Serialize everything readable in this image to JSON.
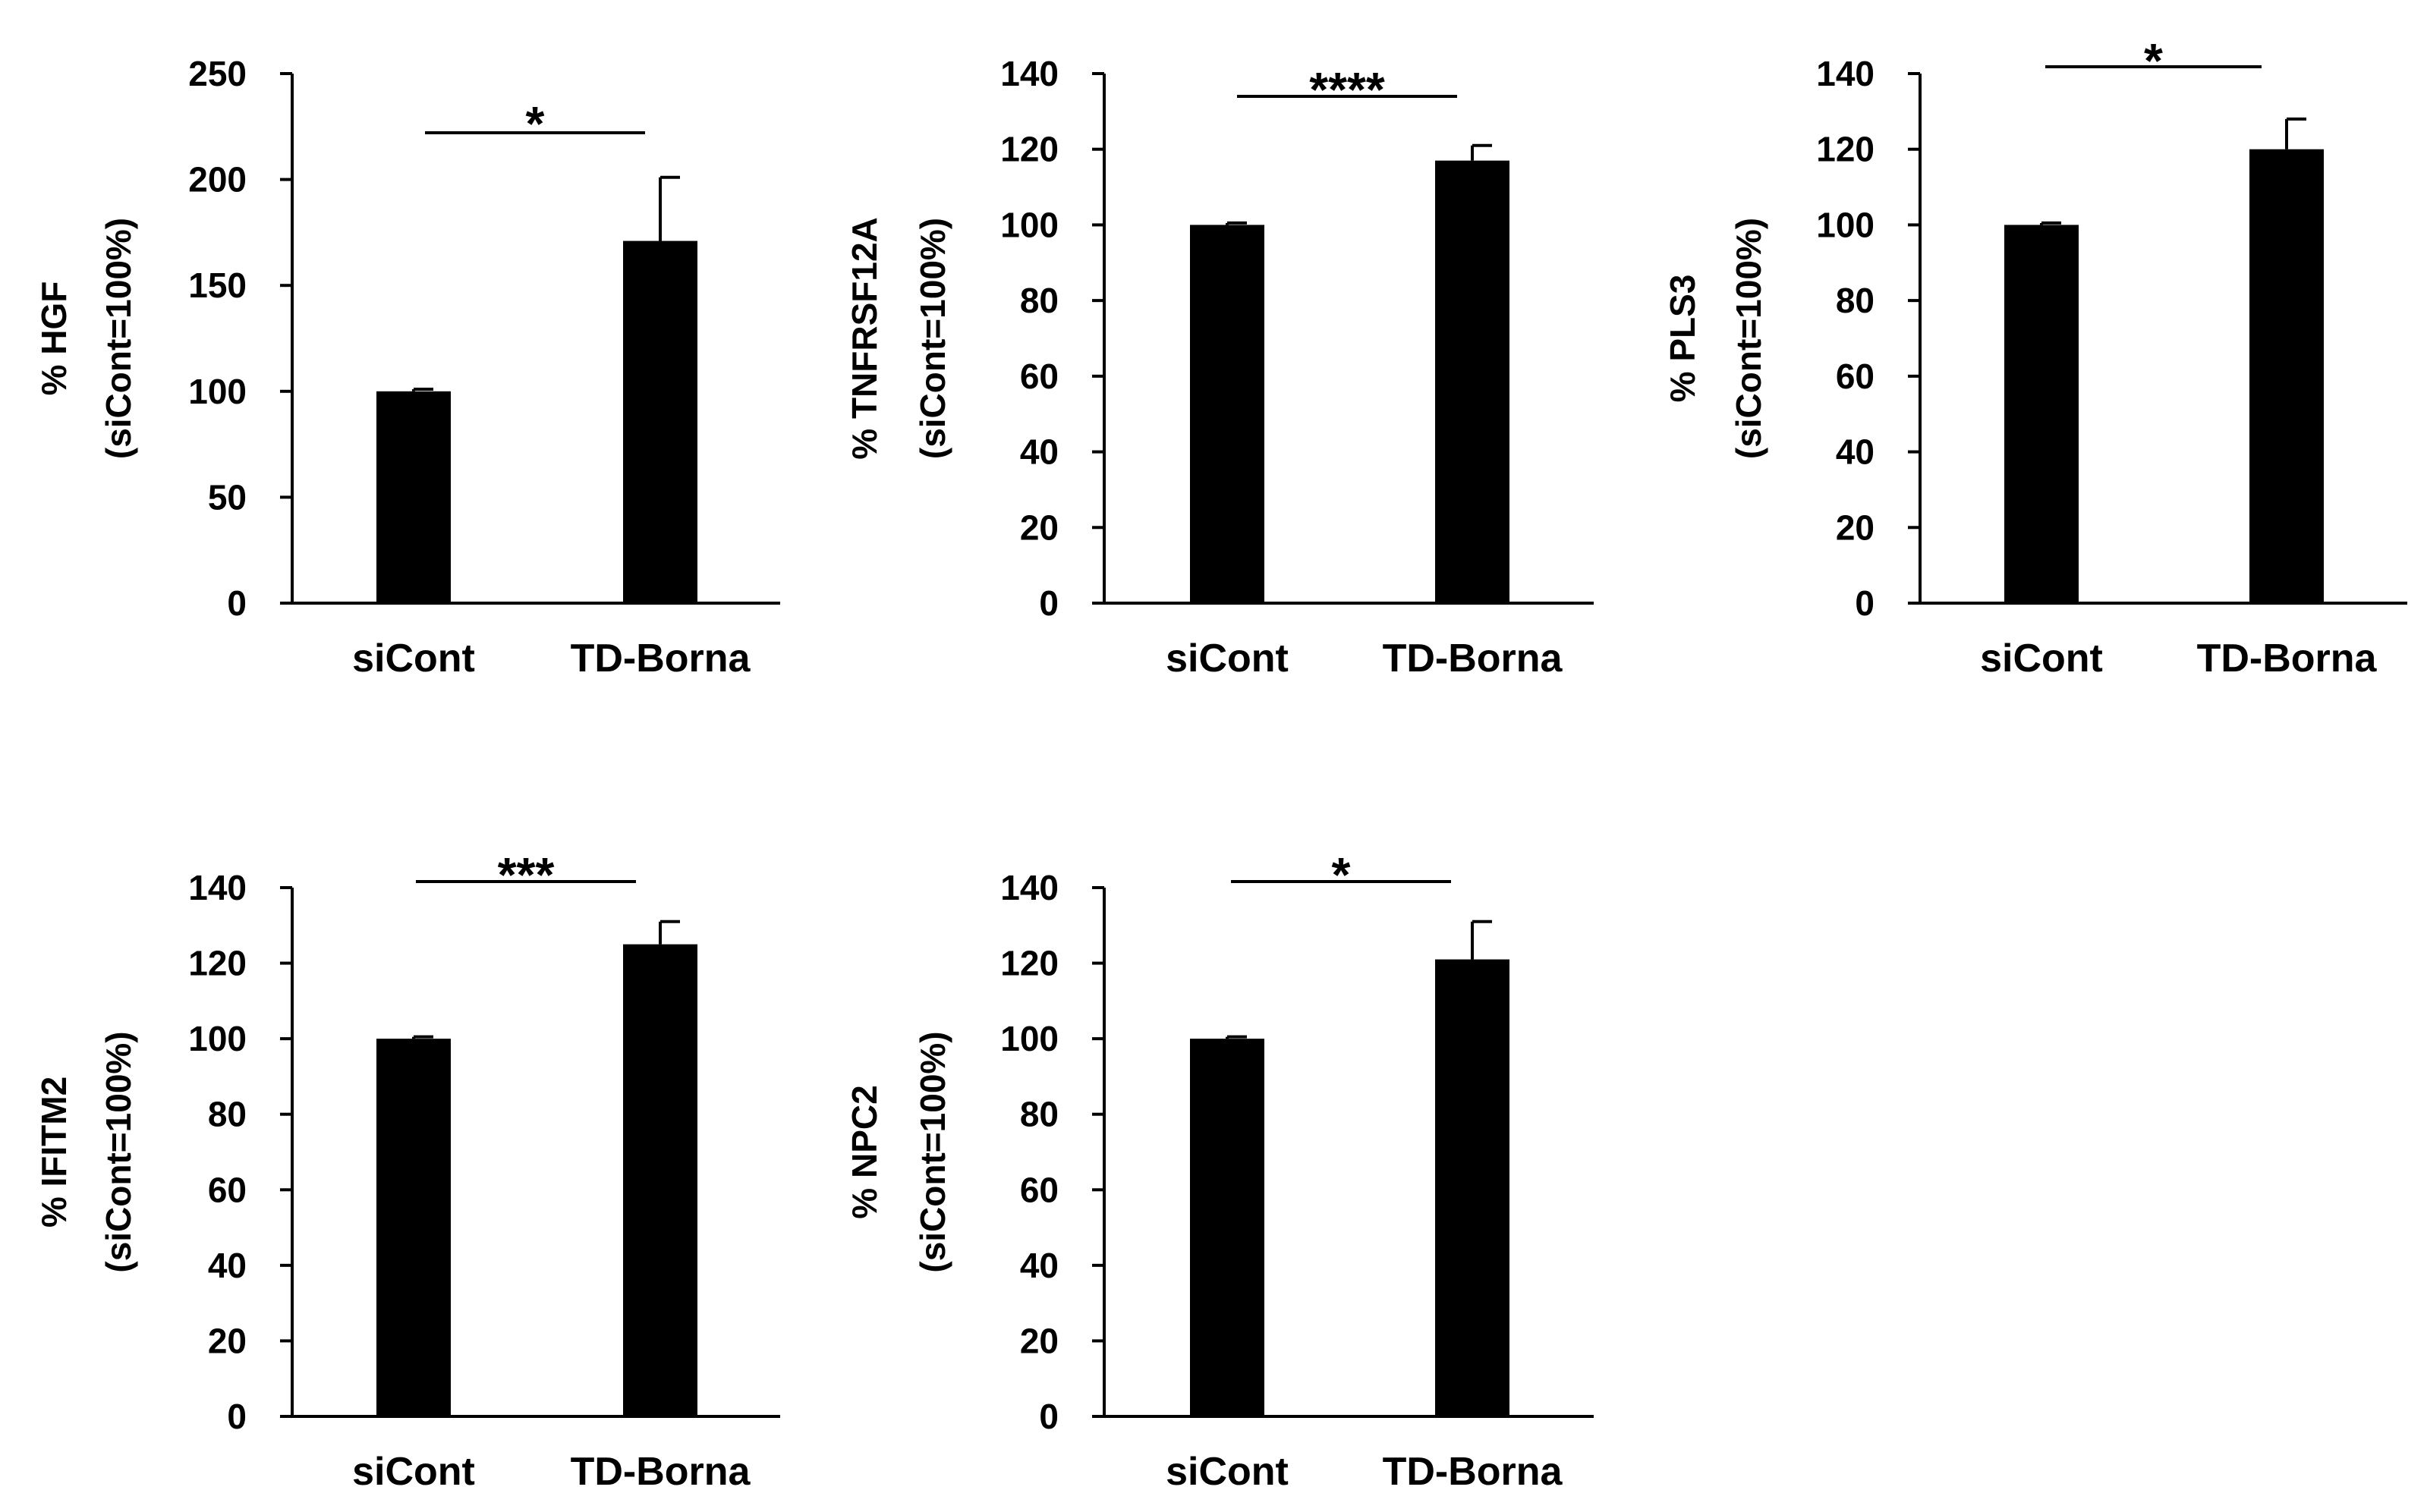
{
  "chart_data": [
    {
      "type": "bar",
      "categories": [
        "siCont",
        "TD-Borna"
      ],
      "values": [
        100,
        171
      ],
      "errors": [
        1,
        30
      ],
      "ylabel": [
        "% HGF",
        "(siCont=100%)"
      ],
      "ylim": [
        0,
        250
      ],
      "yticks": [
        0,
        50,
        100,
        150,
        200,
        250
      ],
      "significance": "*"
    },
    {
      "type": "bar",
      "categories": [
        "siCont",
        "TD-Borna"
      ],
      "values": [
        100,
        117
      ],
      "errors": [
        0.5,
        4
      ],
      "ylabel": [
        "% TNFRSF12A",
        "(siCont=100%)"
      ],
      "ylim": [
        0,
        140
      ],
      "yticks": [
        0,
        20,
        40,
        60,
        80,
        100,
        120,
        140
      ],
      "significance": "****"
    },
    {
      "type": "bar",
      "categories": [
        "siCont",
        "TD-Borna"
      ],
      "values": [
        100,
        120
      ],
      "errors": [
        0.5,
        8
      ],
      "ylabel": [
        "% PLS3",
        "(siCont=100%)"
      ],
      "ylim": [
        0,
        140
      ],
      "yticks": [
        0,
        20,
        40,
        60,
        80,
        100,
        120,
        140
      ],
      "significance": "*"
    },
    {
      "type": "bar",
      "categories": [
        "siCont",
        "TD-Borna"
      ],
      "values": [
        100,
        125
      ],
      "errors": [
        0.5,
        6
      ],
      "ylabel": [
        "% IFITM2",
        "(siCont=100%)"
      ],
      "ylim": [
        0,
        140
      ],
      "yticks": [
        0,
        20,
        40,
        60,
        80,
        100,
        120,
        140
      ],
      "significance": "***"
    },
    {
      "type": "bar",
      "categories": [
        "siCont",
        "TD-Borna"
      ],
      "values": [
        100,
        121
      ],
      "errors": [
        0.5,
        10
      ],
      "ylabel": [
        "% NPC2",
        "(siCont=100%)"
      ],
      "ylim": [
        0,
        140
      ],
      "yticks": [
        0,
        20,
        40,
        60,
        80,
        100,
        120,
        140
      ],
      "significance": "*"
    }
  ]
}
